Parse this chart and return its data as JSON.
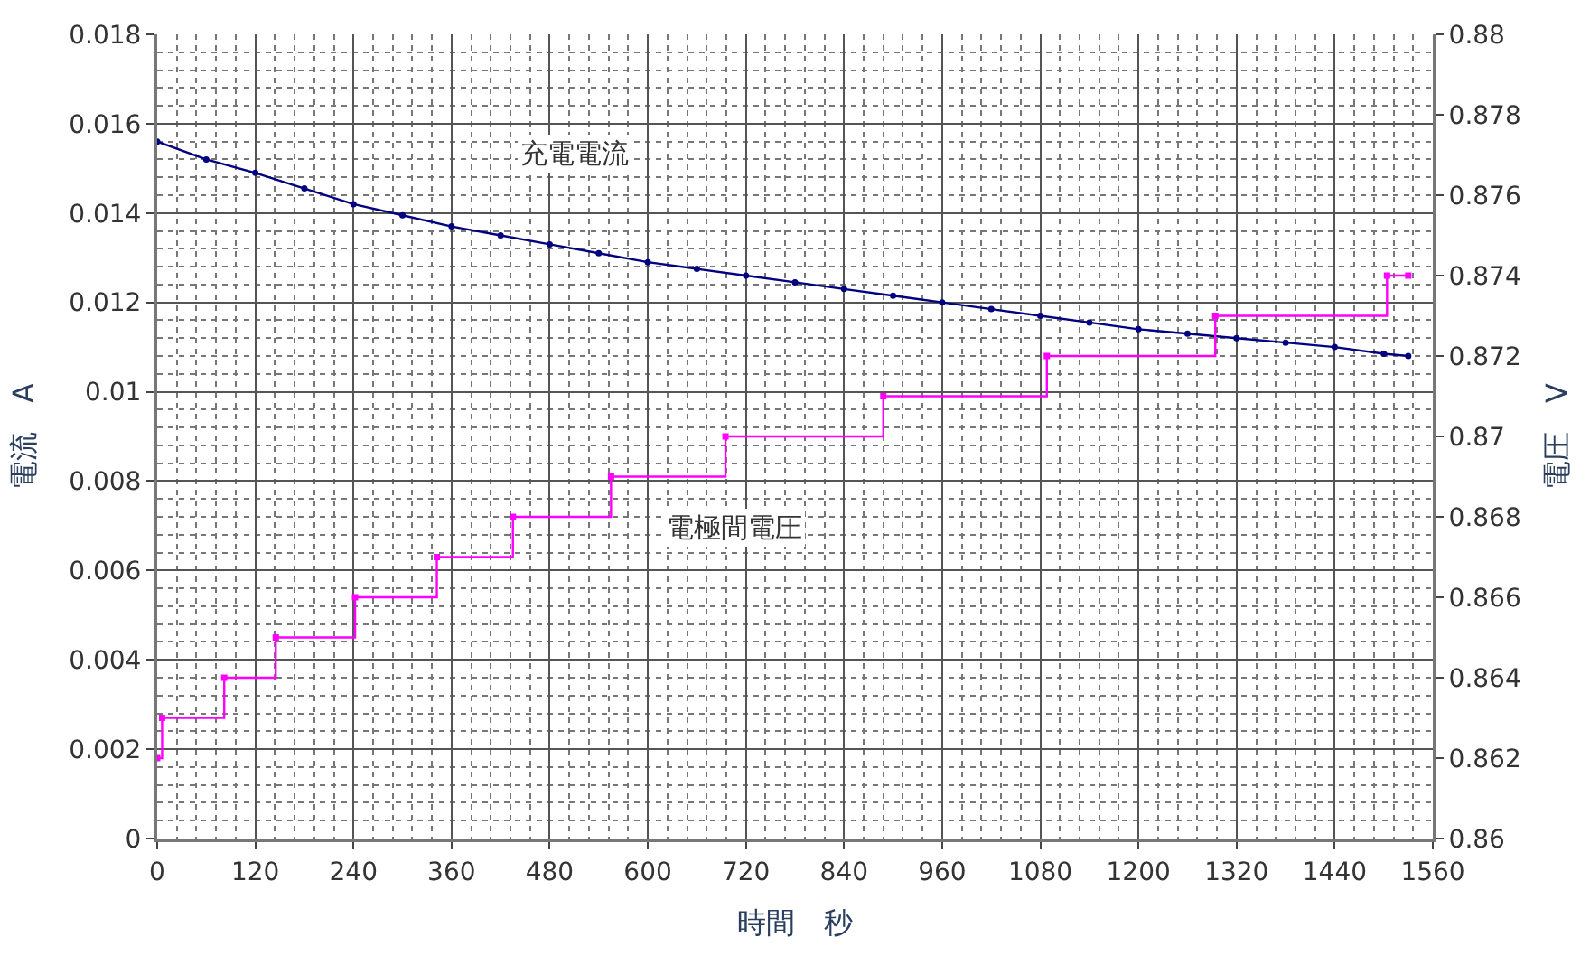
{
  "chart_data": {
    "type": "line",
    "xlabel": "時間　秒",
    "ylabel": "電流　A",
    "y2label": "電圧　V",
    "xlim": [
      0,
      1560
    ],
    "xticks": [
      0,
      120,
      240,
      360,
      480,
      600,
      720,
      840,
      960,
      1080,
      1200,
      1320,
      1440,
      1560
    ],
    "ylim": [
      0,
      0.018
    ],
    "yticks": [
      0,
      0.002,
      0.004,
      0.006,
      0.008,
      0.01,
      0.012,
      0.014,
      0.016,
      0.018
    ],
    "y2lim": [
      0.86,
      0.88
    ],
    "y2ticks": [
      0.86,
      0.862,
      0.864,
      0.866,
      0.868,
      0.87,
      0.872,
      0.874,
      0.876,
      0.878,
      0.88
    ],
    "grid": true,
    "legend": false,
    "series": [
      {
        "name": "充電電流",
        "color": "#000080",
        "marker": "circle",
        "x": [
          0,
          60,
          120,
          180,
          240,
          300,
          360,
          420,
          480,
          540,
          600,
          660,
          720,
          780,
          840,
          900,
          960,
          1020,
          1080,
          1140,
          1200,
          1260,
          1320,
          1380,
          1440,
          1500,
          1530
        ],
        "values": [
          0.0156,
          0.0152,
          0.0149,
          0.01455,
          0.0142,
          0.01395,
          0.0137,
          0.0135,
          0.0133,
          0.0131,
          0.0129,
          0.01275,
          0.0126,
          0.01245,
          0.0123,
          0.01215,
          0.012,
          0.01185,
          0.0117,
          0.01155,
          0.0114,
          0.0113,
          0.0112,
          0.0111,
          0.011,
          0.01085,
          0.0108
        ]
      },
      {
        "name": "電極間電圧",
        "color": "#ff00ff",
        "type": "step",
        "axis": "y2",
        "marker": "square",
        "x": [
          0,
          6,
          82,
          145,
          242,
          342,
          435,
          555,
          695,
          888,
          1088,
          1294,
          1504,
          1530
        ],
        "values": [
          0.862,
          0.863,
          0.864,
          0.865,
          0.866,
          0.867,
          0.868,
          0.869,
          0.87,
          0.871,
          0.872,
          0.873,
          0.874,
          0.874
        ]
      }
    ]
  }
}
